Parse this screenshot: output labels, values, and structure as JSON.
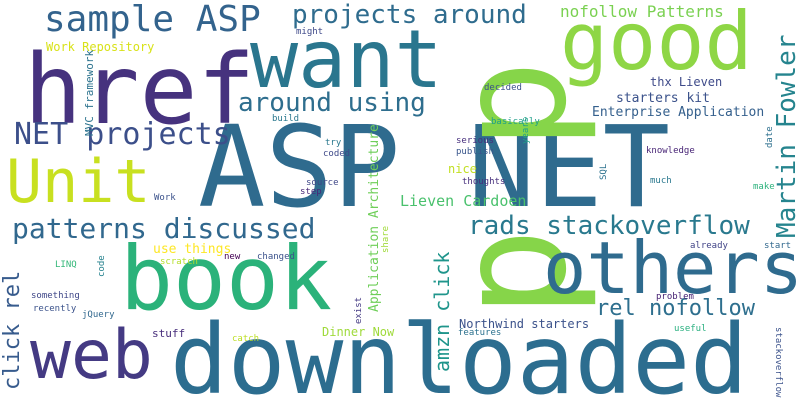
{
  "words": [
    {
      "id": "asp-net",
      "text": "ASP NET",
      "color": "#2f6b8e"
    },
    {
      "id": "downloaded",
      "text": "downloaded",
      "color": "#2c6d8f"
    },
    {
      "id": "book",
      "text": "book",
      "color": "#2bb27a"
    },
    {
      "id": "p",
      "text": "p",
      "color": "#86d549"
    },
    {
      "id": "good",
      "text": "good",
      "color": "#8ed645"
    },
    {
      "id": "others",
      "text": "others",
      "color": "#2f6b8e"
    },
    {
      "id": "href",
      "text": "href",
      "color": "#46327e"
    },
    {
      "id": "want",
      "text": "want",
      "color": "#2a768e"
    },
    {
      "id": "unit",
      "text": "Unit",
      "color": "#c8e020"
    },
    {
      "id": "web",
      "text": "web",
      "color": "#443a83"
    },
    {
      "id": "sample-asp",
      "text": "sample ASP",
      "color": "#33638d"
    },
    {
      "id": "projects-around",
      "text": "projects around",
      "color": "#2f6c8e"
    },
    {
      "id": "net-projects",
      "text": "NET projects",
      "color": "#3c4f8a"
    },
    {
      "id": "patterns-discussed",
      "text": "patterns discussed",
      "color": "#31688e"
    },
    {
      "id": "around-using",
      "text": "around using",
      "color": "#2e6e8e"
    },
    {
      "id": "rads-stackoverflow",
      "text": "rads stackoverflow",
      "color": "#29798e"
    },
    {
      "id": "martin-fowler",
      "text": "Martin Fowler",
      "color": "#25848e"
    },
    {
      "id": "rel-nofollow",
      "text": "rel nofollow",
      "color": "#2e6f8e"
    },
    {
      "id": "click-rel",
      "text": "click rel",
      "color": "#375b8d"
    },
    {
      "id": "amzn-click",
      "text": "amzn click",
      "color": "#1f958b"
    },
    {
      "id": "nofollow-patterns",
      "text": "nofollow Patterns",
      "color": "#7ad151"
    },
    {
      "id": "lieven-cardoen",
      "text": "Lieven Cardoen",
      "color": "#4ac16d"
    },
    {
      "id": "enterprise-application",
      "text": "Enterprise Application",
      "color": "#35608d"
    },
    {
      "id": "starters-kit",
      "text": "starters kit",
      "color": "#3b528b"
    },
    {
      "id": "thx-lieven",
      "text": "thx Lieven",
      "color": "#3e4a89"
    },
    {
      "id": "application-architecture",
      "text": "Application Architecture",
      "color": "#6ece58"
    },
    {
      "id": "northwind-starters",
      "text": "Northwind starters",
      "color": "#3b528b"
    },
    {
      "id": "dinner-now",
      "text": "Dinner Now",
      "color": "#9fda3a"
    },
    {
      "id": "use-things",
      "text": "use things",
      "color": "#fde725"
    },
    {
      "id": "work-repository",
      "text": "Work Repository",
      "color": "#d8e219"
    },
    {
      "id": "mvc-framework",
      "text": "MVC framework",
      "color": "#2c738e"
    },
    {
      "id": "nice",
      "text": "nice",
      "color": "#c2df23"
    },
    {
      "id": "stuff",
      "text": "stuff",
      "color": "#472d7b"
    },
    {
      "id": "might",
      "text": "might",
      "color": "#3e4989"
    },
    {
      "id": "build",
      "text": "build",
      "color": "#2a788e"
    },
    {
      "id": "basically",
      "text": "basically",
      "color": "#1f9e89"
    },
    {
      "id": "decided",
      "text": "decided",
      "color": "#3b528b"
    },
    {
      "id": "years",
      "text": "years",
      "color": "#1fa188"
    },
    {
      "id": "serious",
      "text": "serious",
      "color": "#472f7d"
    },
    {
      "id": "publish",
      "text": "publish",
      "color": "#39568c"
    },
    {
      "id": "knowledge",
      "text": "knowledge",
      "color": "#482576"
    },
    {
      "id": "try",
      "text": "try",
      "color": "#2a788e"
    },
    {
      "id": "coded",
      "text": "coded",
      "color": "#3e4989"
    },
    {
      "id": "source",
      "text": "source",
      "color": "#3f4788"
    },
    {
      "id": "step",
      "text": "step",
      "color": "#482878"
    },
    {
      "id": "sql",
      "text": "SQL",
      "color": "#2c728e"
    },
    {
      "id": "thoughts",
      "text": "thoughts",
      "color": "#472f7d"
    },
    {
      "id": "much",
      "text": "much",
      "color": "#2a788e"
    },
    {
      "id": "make",
      "text": "make",
      "color": "#2db27d"
    },
    {
      "id": "date",
      "text": "date",
      "color": "#2d708e"
    },
    {
      "id": "work",
      "text": "Work",
      "color": "#3b528b"
    },
    {
      "id": "linq",
      "text": "LINQ",
      "color": "#35b779"
    },
    {
      "id": "code",
      "text": "code",
      "color": "#26828e"
    },
    {
      "id": "scratch",
      "text": "scratch",
      "color": "#b5de2b"
    },
    {
      "id": "new",
      "text": "new",
      "color": "#440154"
    },
    {
      "id": "changed",
      "text": "changed",
      "color": "#3b528b"
    },
    {
      "id": "share",
      "text": "share",
      "color": "#a0da39"
    },
    {
      "id": "already",
      "text": "already",
      "color": "#414487"
    },
    {
      "id": "start",
      "text": "start",
      "color": "#31688e"
    },
    {
      "id": "something",
      "text": "something",
      "color": "#3f4788"
    },
    {
      "id": "recently",
      "text": "recently",
      "color": "#3b528b"
    },
    {
      "id": "jquery",
      "text": "jQuery",
      "color": "#31688e"
    },
    {
      "id": "exist",
      "text": "exist",
      "color": "#443a83"
    },
    {
      "id": "features",
      "text": "features",
      "color": "#2c718e"
    },
    {
      "id": "problem",
      "text": "problem",
      "color": "#482374"
    },
    {
      "id": "useful",
      "text": "useful",
      "color": "#29af7f"
    },
    {
      "id": "catch",
      "text": "catch",
      "color": "#bddf26"
    },
    {
      "id": "stackoverflow-small",
      "text": "stackoverflow",
      "color": "#3b528b"
    }
  ]
}
